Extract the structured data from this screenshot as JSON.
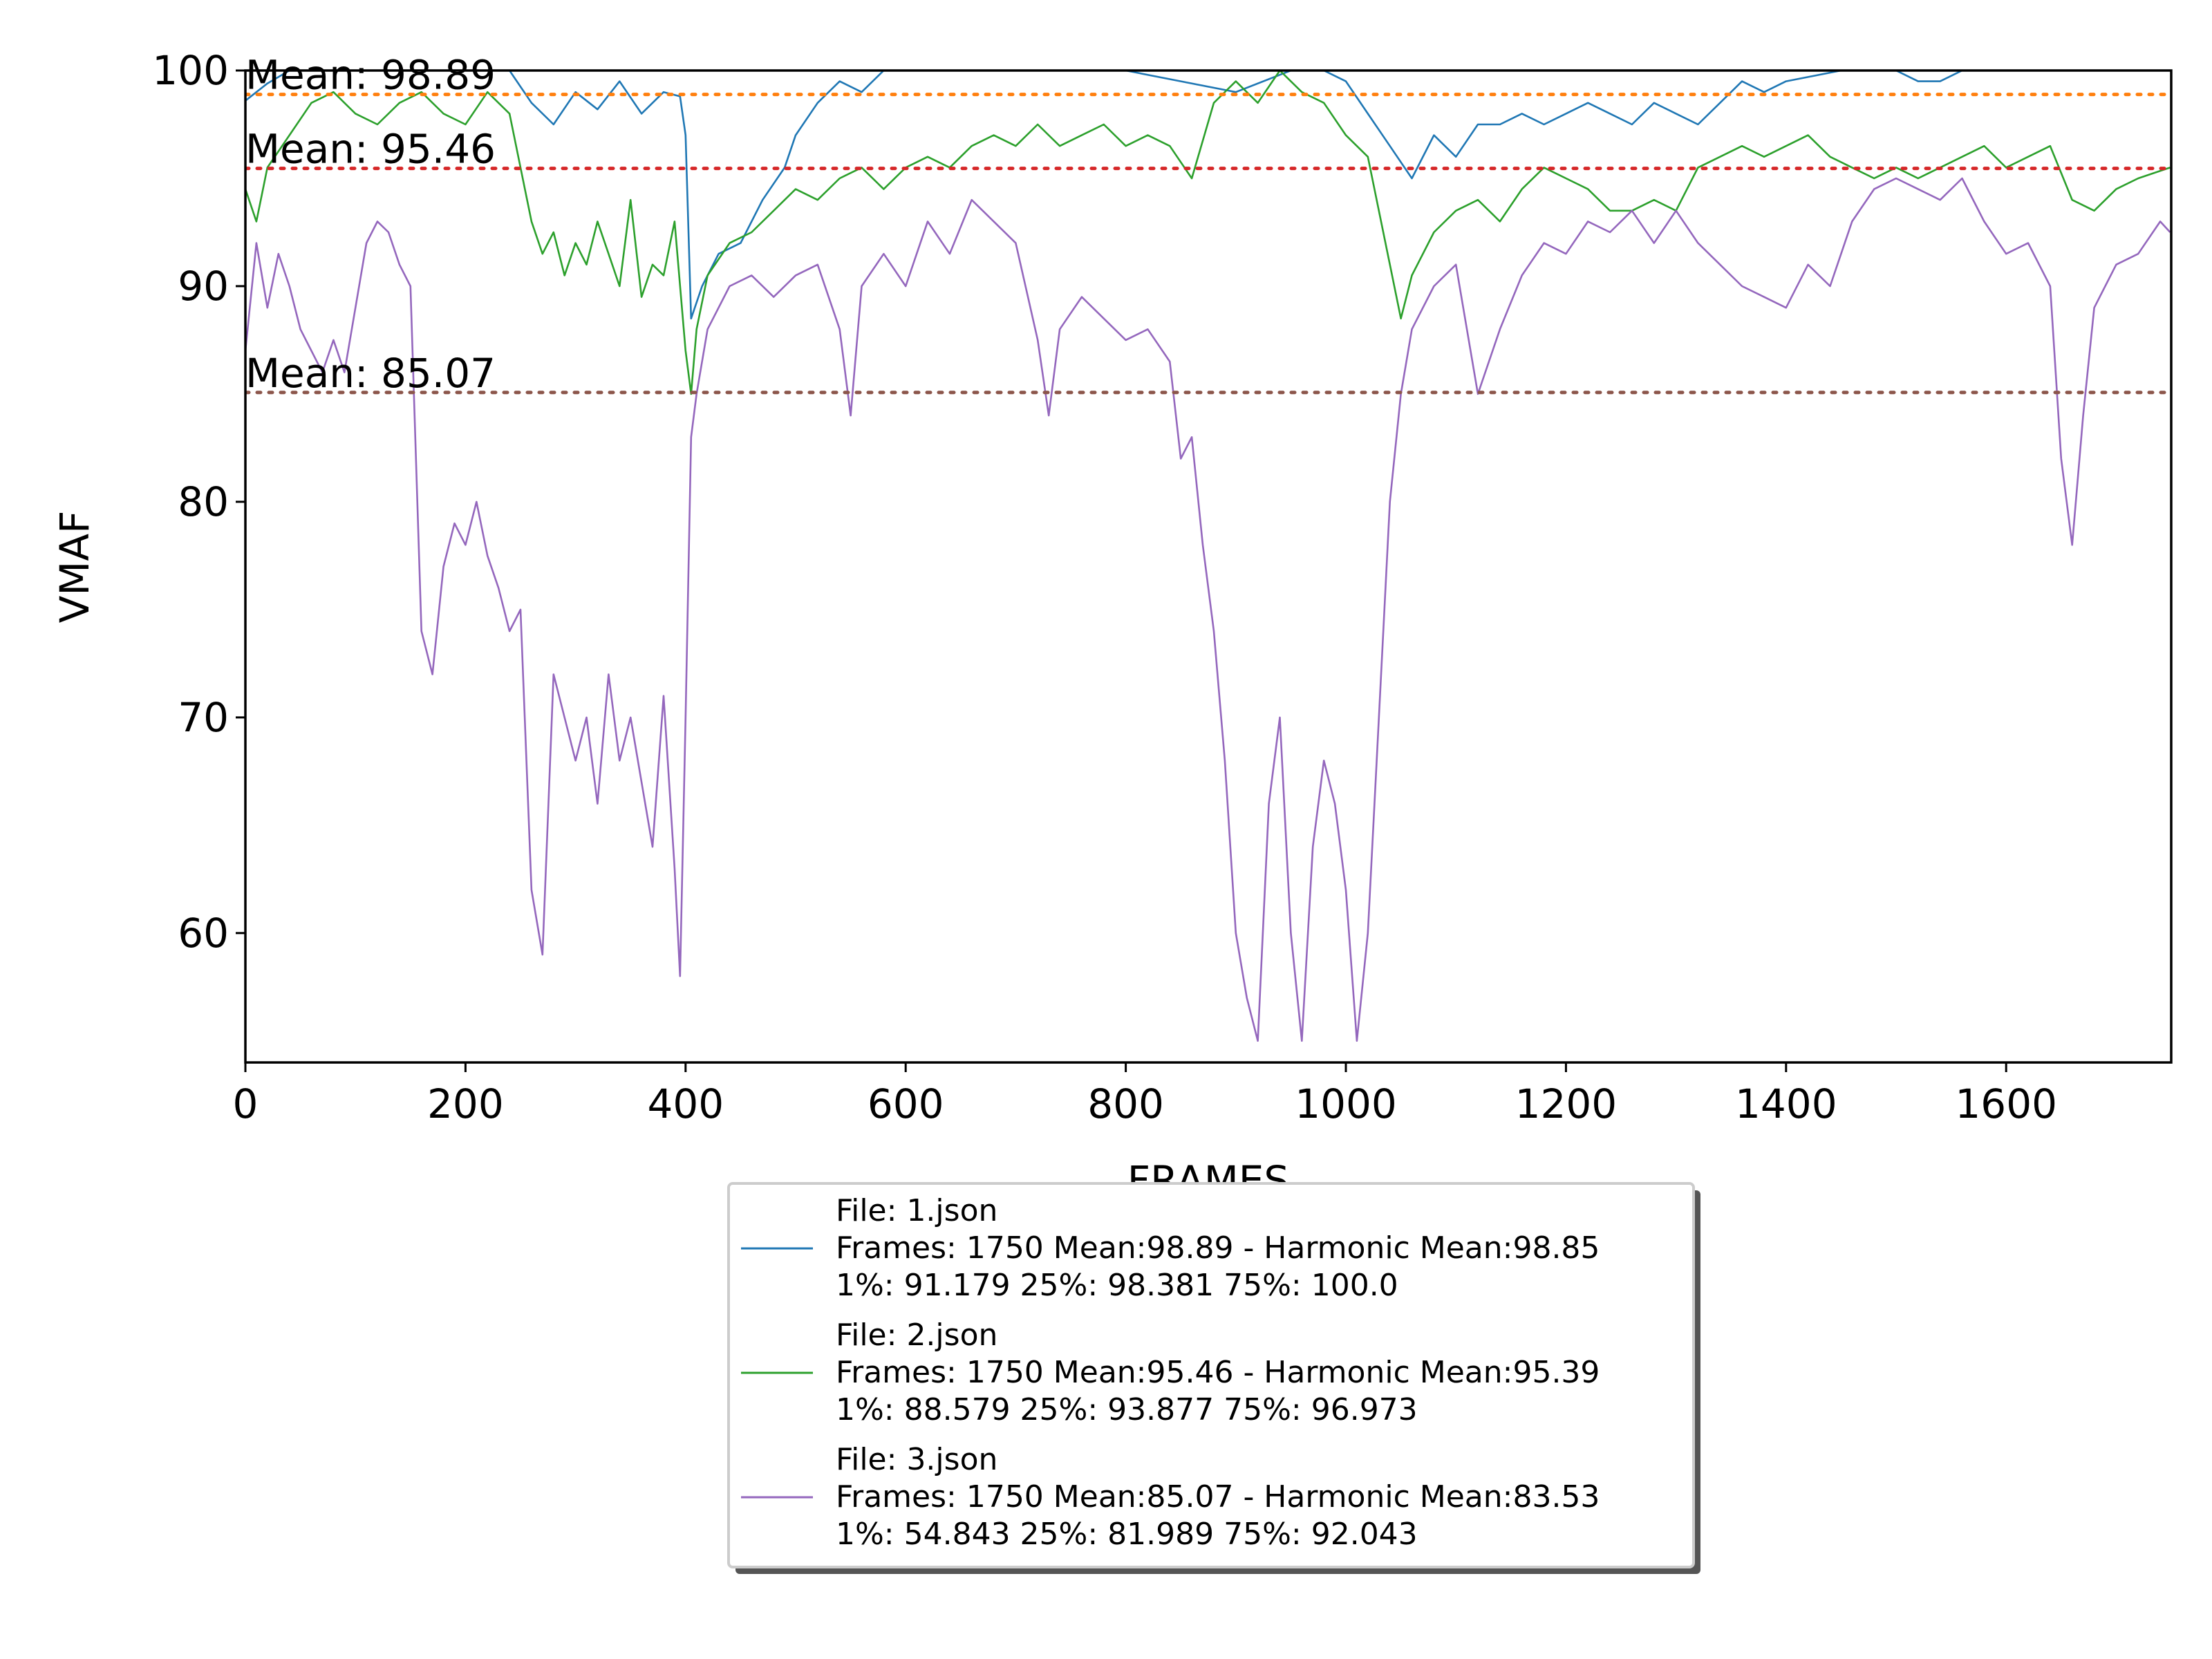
{
  "chart_data": {
    "type": "line",
    "xlabel": "FRAMES",
    "ylabel": "VMAF",
    "xlim": [
      0,
      1750
    ],
    "ylim": [
      54,
      100
    ],
    "xticks": [
      0,
      200,
      400,
      600,
      800,
      1000,
      1200,
      1400,
      1600
    ],
    "yticks": [
      60,
      70,
      80,
      90,
      100
    ],
    "grid": false,
    "legend_position": "below-center",
    "series": [
      {
        "name": "1.json",
        "color": "#1f77b4",
        "legend_lines": [
          "File: 1.json",
          "Frames: 1750 Mean:98.89 - Harmonic Mean:98.85",
          "1%: 91.179  25%: 98.381  75%: 100.0"
        ],
        "points": [
          [
            0,
            98.6
          ],
          [
            20,
            99.4
          ],
          [
            40,
            100
          ],
          [
            60,
            100
          ],
          [
            80,
            100
          ],
          [
            100,
            100
          ],
          [
            130,
            100
          ],
          [
            160,
            100
          ],
          [
            200,
            100
          ],
          [
            240,
            100
          ],
          [
            260,
            98.5
          ],
          [
            280,
            97.5
          ],
          [
            300,
            99
          ],
          [
            320,
            98.2
          ],
          [
            340,
            99.5
          ],
          [
            360,
            98
          ],
          [
            380,
            99
          ],
          [
            395,
            98.8
          ],
          [
            400,
            97
          ],
          [
            405,
            88.5
          ],
          [
            415,
            90
          ],
          [
            430,
            91.5
          ],
          [
            450,
            92
          ],
          [
            470,
            94
          ],
          [
            490,
            95.5
          ],
          [
            500,
            97
          ],
          [
            520,
            98.5
          ],
          [
            540,
            99.5
          ],
          [
            560,
            99
          ],
          [
            580,
            100
          ],
          [
            620,
            100
          ],
          [
            700,
            100
          ],
          [
            800,
            100
          ],
          [
            850,
            99.5
          ],
          [
            900,
            99
          ],
          [
            950,
            100
          ],
          [
            980,
            100
          ],
          [
            1000,
            99.5
          ],
          [
            1020,
            98
          ],
          [
            1040,
            96.5
          ],
          [
            1060,
            95
          ],
          [
            1080,
            97
          ],
          [
            1100,
            96
          ],
          [
            1120,
            97.5
          ],
          [
            1140,
            97.5
          ],
          [
            1160,
            98
          ],
          [
            1180,
            97.5
          ],
          [
            1200,
            98
          ],
          [
            1220,
            98.5
          ],
          [
            1240,
            98
          ],
          [
            1260,
            97.5
          ],
          [
            1280,
            98.5
          ],
          [
            1300,
            98
          ],
          [
            1320,
            97.5
          ],
          [
            1340,
            98.5
          ],
          [
            1360,
            99.5
          ],
          [
            1380,
            99
          ],
          [
            1400,
            99.5
          ],
          [
            1450,
            100
          ],
          [
            1500,
            100
          ],
          [
            1520,
            99.5
          ],
          [
            1540,
            99.5
          ],
          [
            1560,
            100
          ],
          [
            1600,
            100
          ],
          [
            1650,
            100
          ],
          [
            1700,
            100
          ],
          [
            1749,
            100
          ]
        ]
      },
      {
        "name": "2.json",
        "color": "#2ca02c",
        "legend_lines": [
          "File: 2.json",
          "Frames: 1750 Mean:95.46 - Harmonic Mean:95.39",
          "1%: 88.579  25%: 93.877  75%: 96.973"
        ],
        "points": [
          [
            0,
            94.5
          ],
          [
            10,
            93
          ],
          [
            20,
            95.5
          ],
          [
            40,
            97
          ],
          [
            60,
            98.5
          ],
          [
            80,
            99
          ],
          [
            100,
            98
          ],
          [
            120,
            97.5
          ],
          [
            140,
            98.5
          ],
          [
            160,
            99
          ],
          [
            180,
            98
          ],
          [
            200,
            97.5
          ],
          [
            220,
            99
          ],
          [
            240,
            98
          ],
          [
            260,
            93
          ],
          [
            270,
            91.5
          ],
          [
            280,
            92.5
          ],
          [
            290,
            90.5
          ],
          [
            300,
            92
          ],
          [
            310,
            91
          ],
          [
            320,
            93
          ],
          [
            330,
            91.5
          ],
          [
            340,
            90
          ],
          [
            350,
            94
          ],
          [
            360,
            89.5
          ],
          [
            370,
            91
          ],
          [
            380,
            90.5
          ],
          [
            390,
            93
          ],
          [
            400,
            87
          ],
          [
            405,
            85
          ],
          [
            410,
            88
          ],
          [
            420,
            90.5
          ],
          [
            440,
            92
          ],
          [
            460,
            92.5
          ],
          [
            480,
            93.5
          ],
          [
            500,
            94.5
          ],
          [
            520,
            94
          ],
          [
            540,
            95
          ],
          [
            560,
            95.5
          ],
          [
            580,
            94.5
          ],
          [
            600,
            95.5
          ],
          [
            620,
            96
          ],
          [
            640,
            95.5
          ],
          [
            660,
            96.5
          ],
          [
            680,
            97
          ],
          [
            700,
            96.5
          ],
          [
            720,
            97.5
          ],
          [
            740,
            96.5
          ],
          [
            760,
            97
          ],
          [
            780,
            97.5
          ],
          [
            800,
            96.5
          ],
          [
            820,
            97
          ],
          [
            840,
            96.5
          ],
          [
            860,
            95
          ],
          [
            880,
            98.5
          ],
          [
            900,
            99.5
          ],
          [
            920,
            98.5
          ],
          [
            940,
            100
          ],
          [
            960,
            99
          ],
          [
            980,
            98.5
          ],
          [
            1000,
            97
          ],
          [
            1020,
            96
          ],
          [
            1040,
            91
          ],
          [
            1050,
            88.5
          ],
          [
            1060,
            90.5
          ],
          [
            1080,
            92.5
          ],
          [
            1100,
            93.5
          ],
          [
            1120,
            94
          ],
          [
            1140,
            93
          ],
          [
            1160,
            94.5
          ],
          [
            1180,
            95.5
          ],
          [
            1200,
            95
          ],
          [
            1220,
            94.5
          ],
          [
            1240,
            93.5
          ],
          [
            1260,
            93.5
          ],
          [
            1280,
            94
          ],
          [
            1300,
            93.5
          ],
          [
            1320,
            95.5
          ],
          [
            1340,
            96
          ],
          [
            1360,
            96.5
          ],
          [
            1380,
            96
          ],
          [
            1400,
            96.5
          ],
          [
            1420,
            97
          ],
          [
            1440,
            96
          ],
          [
            1460,
            95.5
          ],
          [
            1480,
            95
          ],
          [
            1500,
            95.5
          ],
          [
            1520,
            95
          ],
          [
            1540,
            95.5
          ],
          [
            1560,
            96
          ],
          [
            1580,
            96.5
          ],
          [
            1600,
            95.5
          ],
          [
            1620,
            96
          ],
          [
            1640,
            96.5
          ],
          [
            1660,
            94
          ],
          [
            1680,
            93.5
          ],
          [
            1700,
            94.5
          ],
          [
            1720,
            95
          ],
          [
            1749,
            95.5
          ]
        ]
      },
      {
        "name": "3.json",
        "color": "#9467bd",
        "legend_lines": [
          "File: 3.json",
          "Frames: 1750 Mean:85.07 - Harmonic Mean:83.53",
          "1%: 54.843  25%: 81.989  75%: 92.043"
        ],
        "points": [
          [
            0,
            87
          ],
          [
            10,
            92
          ],
          [
            20,
            89
          ],
          [
            30,
            91.5
          ],
          [
            40,
            90
          ],
          [
            50,
            88
          ],
          [
            60,
            87
          ],
          [
            70,
            86
          ],
          [
            80,
            87.5
          ],
          [
            90,
            86
          ],
          [
            100,
            89
          ],
          [
            110,
            92
          ],
          [
            120,
            93
          ],
          [
            130,
            92.5
          ],
          [
            140,
            91
          ],
          [
            150,
            90
          ],
          [
            160,
            74
          ],
          [
            170,
            72
          ],
          [
            180,
            77
          ],
          [
            190,
            79
          ],
          [
            200,
            78
          ],
          [
            210,
            80
          ],
          [
            220,
            77.5
          ],
          [
            230,
            76
          ],
          [
            240,
            74
          ],
          [
            250,
            75
          ],
          [
            260,
            62
          ],
          [
            270,
            59
          ],
          [
            280,
            72
          ],
          [
            290,
            70
          ],
          [
            300,
            68
          ],
          [
            310,
            70
          ],
          [
            320,
            66
          ],
          [
            330,
            72
          ],
          [
            340,
            68
          ],
          [
            350,
            70
          ],
          [
            360,
            67
          ],
          [
            370,
            64
          ],
          [
            380,
            71
          ],
          [
            390,
            63
          ],
          [
            395,
            58
          ],
          [
            400,
            70
          ],
          [
            405,
            83
          ],
          [
            410,
            85
          ],
          [
            420,
            88
          ],
          [
            440,
            90
          ],
          [
            460,
            90.5
          ],
          [
            480,
            89.5
          ],
          [
            500,
            90.5
          ],
          [
            520,
            91
          ],
          [
            540,
            88
          ],
          [
            550,
            84
          ],
          [
            560,
            90
          ],
          [
            580,
            91.5
          ],
          [
            600,
            90
          ],
          [
            620,
            93
          ],
          [
            640,
            91.5
          ],
          [
            660,
            94
          ],
          [
            680,
            93
          ],
          [
            700,
            92
          ],
          [
            720,
            87.5
          ],
          [
            730,
            84
          ],
          [
            740,
            88
          ],
          [
            760,
            89.5
          ],
          [
            780,
            88.5
          ],
          [
            800,
            87.5
          ],
          [
            820,
            88
          ],
          [
            840,
            86.5
          ],
          [
            850,
            82
          ],
          [
            860,
            83
          ],
          [
            870,
            78
          ],
          [
            880,
            74
          ],
          [
            890,
            68
          ],
          [
            900,
            60
          ],
          [
            910,
            57
          ],
          [
            920,
            55
          ],
          [
            930,
            66
          ],
          [
            940,
            70
          ],
          [
            950,
            60
          ],
          [
            960,
            55
          ],
          [
            970,
            64
          ],
          [
            980,
            68
          ],
          [
            990,
            66
          ],
          [
            1000,
            62
          ],
          [
            1010,
            55
          ],
          [
            1020,
            60
          ],
          [
            1030,
            70
          ],
          [
            1040,
            80
          ],
          [
            1050,
            85
          ],
          [
            1060,
            88
          ],
          [
            1080,
            90
          ],
          [
            1100,
            91
          ],
          [
            1120,
            85
          ],
          [
            1140,
            88
          ],
          [
            1160,
            90.5
          ],
          [
            1180,
            92
          ],
          [
            1200,
            91.5
          ],
          [
            1220,
            93
          ],
          [
            1240,
            92.5
          ],
          [
            1260,
            93.5
          ],
          [
            1280,
            92
          ],
          [
            1300,
            93.5
          ],
          [
            1320,
            92
          ],
          [
            1340,
            91
          ],
          [
            1360,
            90
          ],
          [
            1380,
            89.5
          ],
          [
            1400,
            89
          ],
          [
            1420,
            91
          ],
          [
            1440,
            90
          ],
          [
            1460,
            93
          ],
          [
            1480,
            94.5
          ],
          [
            1500,
            95
          ],
          [
            1520,
            94.5
          ],
          [
            1540,
            94
          ],
          [
            1560,
            95
          ],
          [
            1580,
            93
          ],
          [
            1600,
            91.5
          ],
          [
            1620,
            92
          ],
          [
            1640,
            90
          ],
          [
            1650,
            82
          ],
          [
            1660,
            78
          ],
          [
            1670,
            84
          ],
          [
            1680,
            89
          ],
          [
            1700,
            91
          ],
          [
            1720,
            91.5
          ],
          [
            1740,
            93
          ],
          [
            1749,
            92.5
          ]
        ]
      }
    ],
    "mean_lines": [
      {
        "value": 98.89,
        "label": "Mean: 98.89",
        "color": "#ff7f0e"
      },
      {
        "value": 95.46,
        "label": "Mean: 95.46",
        "color": "#d62728"
      },
      {
        "value": 85.07,
        "label": "Mean: 85.07",
        "color": "#8c564b"
      }
    ]
  }
}
